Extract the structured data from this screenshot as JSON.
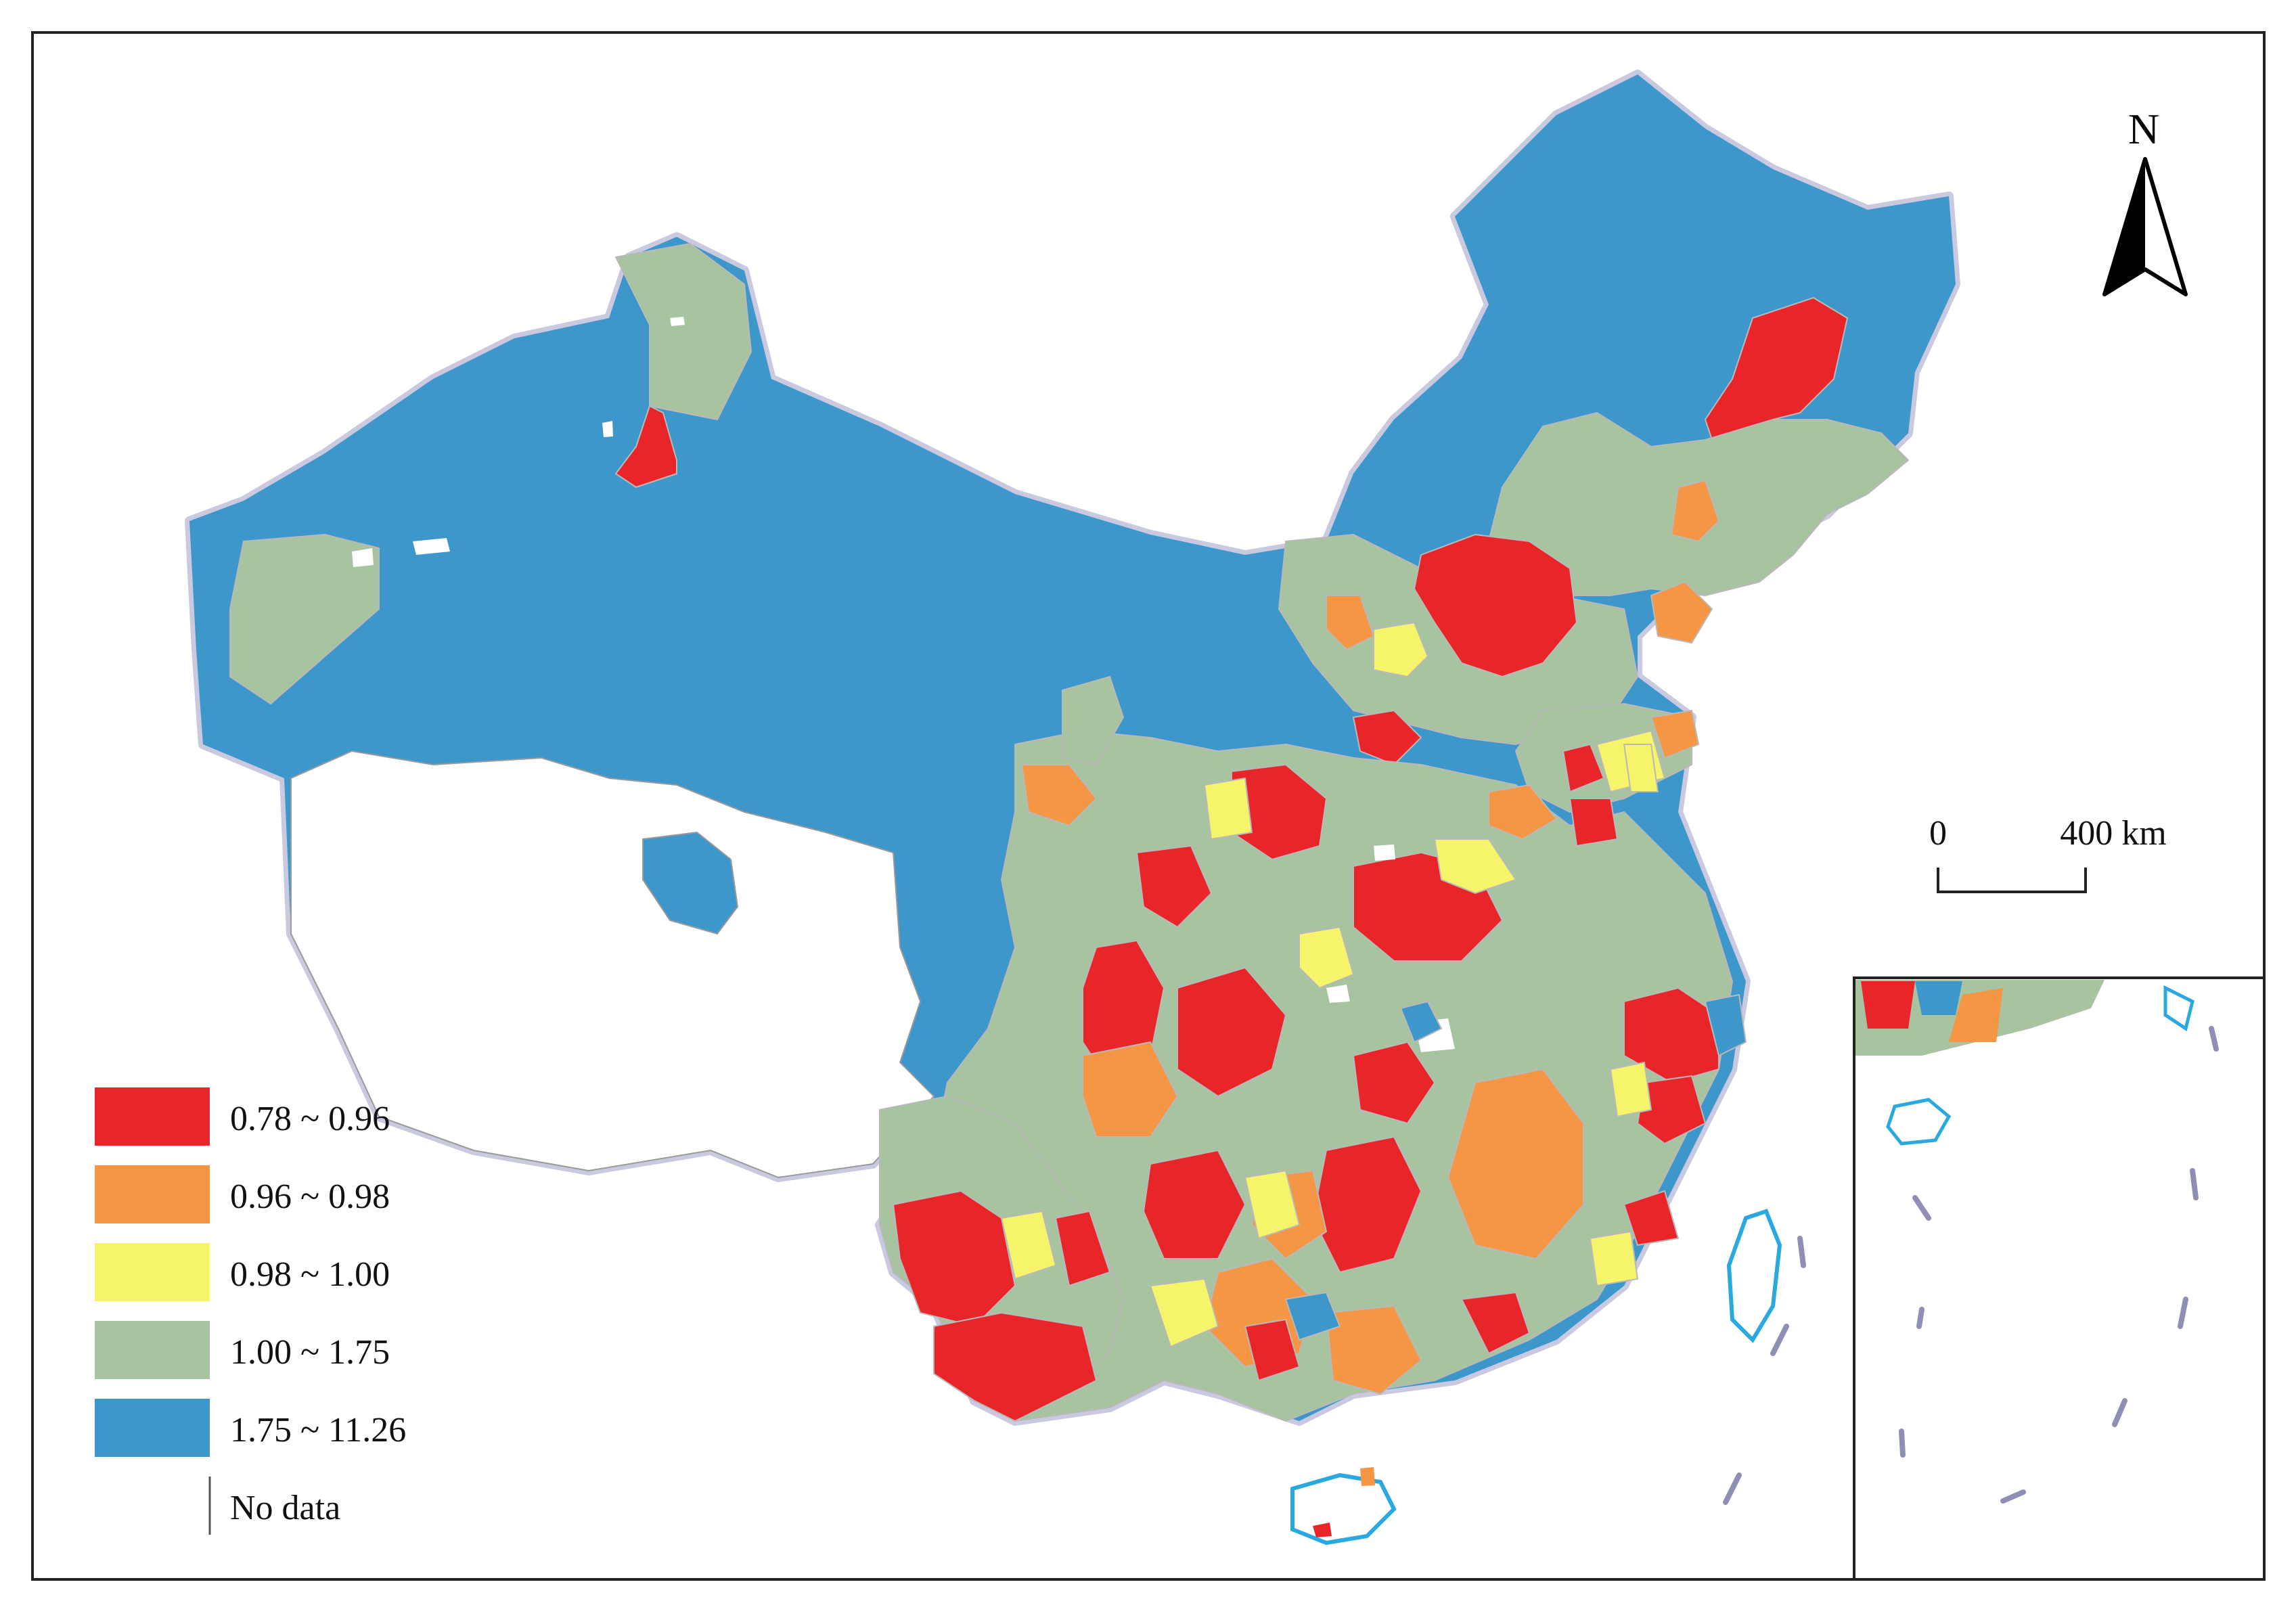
{
  "map": {
    "north_label": "N",
    "scale": {
      "start": "0",
      "end": "400 km"
    },
    "legend": [
      {
        "label": "0.78 ~ 0.96",
        "color": "#e8262a"
      },
      {
        "label": "0.96 ~ 0.98",
        "color": "#f59645"
      },
      {
        "label": "0.98 ~ 1.00",
        "color": "#f6f46a"
      },
      {
        "label": "1.00 ~ 1.75",
        "color": "#a8c3a0"
      },
      {
        "label": "1.75 ~ 11.26",
        "color": "#3d97cb"
      },
      {
        "label": "No data",
        "color": "#ffffff"
      }
    ],
    "colors": {
      "red": "#e8262a",
      "orange": "#f59645",
      "yellow": "#f6f46a",
      "green": "#a8c3a0",
      "blue": "#3d97cb",
      "nodata": "#ffffff",
      "border": "#c9c9df",
      "coast": "#2aa8e0"
    }
  }
}
